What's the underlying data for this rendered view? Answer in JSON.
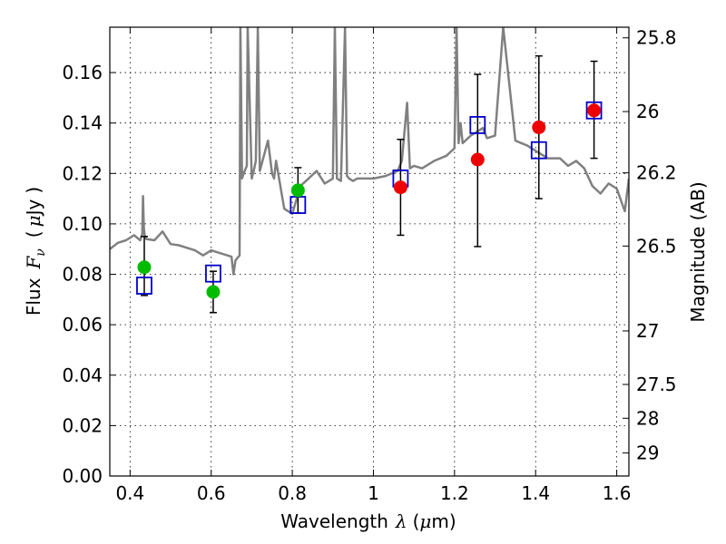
{
  "chart_data": {
    "type": "scatter",
    "xlabel_text": "Wavelength",
    "xlabel_symbol": "λ",
    "xlabel_unit_open": "(",
    "xlabel_unit_mu": "μ",
    "xlabel_unit_rest": "m)",
    "ylabel_text": "Flux",
    "ylabel_symbol": "F",
    "ylabel_sub": "ν",
    "ylabel_unit_open": "(",
    "ylabel_unit_mu": "μ",
    "ylabel_unit_rest": "Jy",
    "ylabel_unit_close": ")",
    "y2label": "Magnitude (AB)",
    "xlim": [
      0.35,
      1.63
    ],
    "ylim": [
      0.0,
      0.178
    ],
    "grid": true,
    "x_ticks": [
      0.4,
      0.6,
      0.8,
      1.0,
      1.2,
      1.4,
      1.6
    ],
    "x_tick_labels": [
      "0.4",
      "0.6",
      "0.8",
      "1",
      "1.2",
      "1.4",
      "1.6"
    ],
    "y_ticks": [
      0.0,
      0.02,
      0.04,
      0.06,
      0.08,
      0.1,
      0.12,
      0.14,
      0.16
    ],
    "y_tick_labels": [
      "0.00",
      "0.02",
      "0.04",
      "0.06",
      "0.08",
      "0.10",
      "0.12",
      "0.14",
      "0.16"
    ],
    "y2_ticks": [
      25.8,
      26.0,
      26.2,
      26.5,
      27.0,
      27.5,
      28.0,
      29.0
    ],
    "y2_tick_labels": [
      "25.8",
      "26",
      "26.2",
      "26.5",
      "27",
      "27.5",
      "28",
      "29"
    ],
    "colors": {
      "spectrum": "#808080",
      "green": "#00bb00",
      "red": "#ee0000",
      "blue": "#0000cc",
      "errorbar": "#000000"
    },
    "series": [
      {
        "marker": "filled-circle",
        "color": "green",
        "points": [
          {
            "x": 0.435,
            "y": 0.0828,
            "yerr": [
              0.0112,
              0.0122
            ]
          },
          {
            "x": 0.605,
            "y": 0.073,
            "yerr": [
              0.0082,
              0.0082
            ]
          },
          {
            "x": 0.814,
            "y": 0.1133,
            "yerr": [
              0.009,
              0.009
            ]
          }
        ]
      },
      {
        "marker": "filled-circle",
        "color": "red",
        "points": [
          {
            "x": 1.067,
            "y": 0.1145,
            "yerr": [
              0.019,
              0.019
            ]
          },
          {
            "x": 1.257,
            "y": 0.1255,
            "yerr": [
              0.0345,
              0.0338
            ]
          },
          {
            "x": 1.408,
            "y": 0.1383,
            "yerr": [
              0.0283,
              0.0283
            ]
          },
          {
            "x": 1.544,
            "y": 0.145,
            "yerr": [
              0.019,
              0.0195
            ]
          }
        ]
      },
      {
        "marker": "open-square",
        "color": "blue",
        "points": [
          {
            "x": 0.435,
            "y": 0.0755
          },
          {
            "x": 0.605,
            "y": 0.0803
          },
          {
            "x": 0.814,
            "y": 0.1075
          },
          {
            "x": 1.067,
            "y": 0.118
          },
          {
            "x": 1.257,
            "y": 0.1392
          },
          {
            "x": 1.408,
            "y": 0.1292
          },
          {
            "x": 1.544,
            "y": 0.145
          }
        ]
      }
    ],
    "spectrum": {
      "x": [
        0.35,
        0.37,
        0.39,
        0.41,
        0.425,
        0.43,
        0.432,
        0.434,
        0.436,
        0.44,
        0.46,
        0.48,
        0.5,
        0.52,
        0.54,
        0.56,
        0.58,
        0.6,
        0.62,
        0.64,
        0.65,
        0.655,
        0.66,
        0.67,
        0.672,
        0.676,
        0.68,
        0.688,
        0.69,
        0.7,
        0.705,
        0.71,
        0.715,
        0.72,
        0.74,
        0.75,
        0.755,
        0.76,
        0.78,
        0.8,
        0.82,
        0.84,
        0.86,
        0.88,
        0.9,
        0.905,
        0.91,
        0.92,
        0.93,
        0.935,
        0.94,
        0.95,
        0.96,
        1.0,
        1.03,
        1.06,
        1.07,
        1.083,
        1.09,
        1.1,
        1.12,
        1.15,
        1.18,
        1.2,
        1.205,
        1.21,
        1.215,
        1.22,
        1.24,
        1.25,
        1.27,
        1.28,
        1.3,
        1.32,
        1.35,
        1.38,
        1.4,
        1.43,
        1.46,
        1.48,
        1.5,
        1.52,
        1.54,
        1.56,
        1.58,
        1.6,
        1.62,
        1.63
      ],
      "y": [
        0.09,
        0.0925,
        0.0935,
        0.0955,
        0.0935,
        0.096,
        0.111,
        0.0985,
        0.0955,
        0.094,
        0.0935,
        0.097,
        0.092,
        0.0915,
        0.0905,
        0.0895,
        0.0875,
        0.0895,
        0.0885,
        0.0875,
        0.087,
        0.08,
        0.0855,
        0.0875,
        0.178,
        0.118,
        0.12,
        0.123,
        0.178,
        0.118,
        0.121,
        0.125,
        0.178,
        0.121,
        0.133,
        0.12,
        0.118,
        0.125,
        0.106,
        0.104,
        0.115,
        0.118,
        0.121,
        0.116,
        0.118,
        0.178,
        0.118,
        0.117,
        0.178,
        0.119,
        0.118,
        0.117,
        0.118,
        0.118,
        0.119,
        0.121,
        0.125,
        0.148,
        0.122,
        0.123,
        0.122,
        0.125,
        0.127,
        0.13,
        0.178,
        0.132,
        0.14,
        0.132,
        0.135,
        0.136,
        0.138,
        0.134,
        0.135,
        0.178,
        0.133,
        0.131,
        0.129,
        0.126,
        0.126,
        0.123,
        0.125,
        0.122,
        0.115,
        0.112,
        0.116,
        0.114,
        0.105,
        0.118
      ]
    }
  }
}
